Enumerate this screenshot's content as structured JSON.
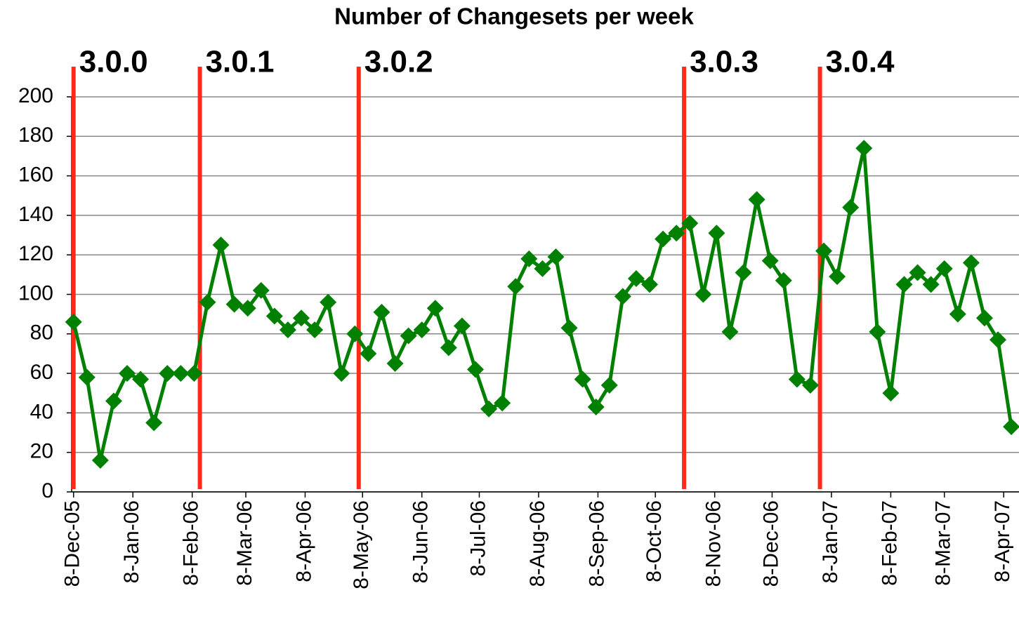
{
  "chart_data": {
    "type": "line",
    "title": "Number of Changesets per week",
    "x": [
      "2005-12-08",
      "2005-12-15",
      "2005-12-22",
      "2005-12-29",
      "2006-01-05",
      "2006-01-12",
      "2006-01-19",
      "2006-01-26",
      "2006-02-02",
      "2006-02-09",
      "2006-02-16",
      "2006-02-23",
      "2006-03-02",
      "2006-03-09",
      "2006-03-16",
      "2006-03-23",
      "2006-03-30",
      "2006-04-06",
      "2006-04-13",
      "2006-04-20",
      "2006-04-27",
      "2006-05-04",
      "2006-05-11",
      "2006-05-18",
      "2006-05-25",
      "2006-06-01",
      "2006-06-08",
      "2006-06-15",
      "2006-06-22",
      "2006-06-29",
      "2006-07-06",
      "2006-07-13",
      "2006-07-20",
      "2006-07-27",
      "2006-08-03",
      "2006-08-10",
      "2006-08-17",
      "2006-08-24",
      "2006-08-31",
      "2006-09-07",
      "2006-09-14",
      "2006-09-21",
      "2006-09-28",
      "2006-10-05",
      "2006-10-12",
      "2006-10-19",
      "2006-10-26",
      "2006-11-02",
      "2006-11-09",
      "2006-11-16",
      "2006-11-23",
      "2006-11-30",
      "2006-12-07",
      "2006-12-14",
      "2006-12-21",
      "2006-12-28",
      "2007-01-04",
      "2007-01-11",
      "2007-01-18",
      "2007-01-25",
      "2007-02-01",
      "2007-02-08",
      "2007-02-15",
      "2007-02-22",
      "2007-03-01",
      "2007-03-08",
      "2007-03-15",
      "2007-03-22",
      "2007-03-29",
      "2007-04-05",
      "2007-04-12"
    ],
    "series": [
      {
        "name": "Changesets",
        "color": "#008000",
        "values": [
          86,
          58,
          16,
          46,
          60,
          57,
          35,
          60,
          60,
          60,
          96,
          125,
          95,
          93,
          102,
          89,
          82,
          88,
          82,
          96,
          60,
          80,
          70,
          91,
          65,
          79,
          82,
          93,
          73,
          84,
          62,
          42,
          45,
          104,
          118,
          113,
          119,
          83,
          57,
          43,
          54,
          99,
          108,
          105,
          128,
          131,
          136,
          100,
          131,
          81,
          111,
          148,
          117,
          107,
          57,
          54,
          122,
          109,
          144,
          174,
          81,
          50,
          105,
          111,
          105,
          113,
          90,
          116,
          88,
          77,
          33
        ]
      }
    ],
    "releases": {
      "color": "#ff2a1a",
      "items": [
        {
          "x": "2005-12-08",
          "label": "3.0.0"
        },
        {
          "x": "2006-02-12",
          "label": "3.0.1"
        },
        {
          "x": "2006-05-06",
          "label": "3.0.2"
        },
        {
          "x": "2006-10-23",
          "label": "3.0.3"
        },
        {
          "x": "2007-01-02",
          "label": "3.0.4"
        }
      ]
    },
    "xlim": [
      "2005-12-07",
      "2007-04-16"
    ],
    "xticks": [
      {
        "value": "2005-12-08",
        "label": "8-Dec-05"
      },
      {
        "value": "2006-01-08",
        "label": "8-Jan-06"
      },
      {
        "value": "2006-02-08",
        "label": "8-Feb-06"
      },
      {
        "value": "2006-03-08",
        "label": "8-Mar-06"
      },
      {
        "value": "2006-04-08",
        "label": "8-Apr-06"
      },
      {
        "value": "2006-05-08",
        "label": "8-May-06"
      },
      {
        "value": "2006-06-08",
        "label": "8-Jun-06"
      },
      {
        "value": "2006-07-08",
        "label": "8-Jul-06"
      },
      {
        "value": "2006-08-08",
        "label": "8-Aug-06"
      },
      {
        "value": "2006-09-08",
        "label": "8-Sep-06"
      },
      {
        "value": "2006-10-08",
        "label": "8-Oct-06"
      },
      {
        "value": "2006-11-08",
        "label": "8-Nov-06"
      },
      {
        "value": "2006-12-08",
        "label": "8-Dec-06"
      },
      {
        "value": "2007-01-08",
        "label": "8-Jan-07"
      },
      {
        "value": "2007-02-08",
        "label": "8-Feb-07"
      },
      {
        "value": "2007-03-08",
        "label": "8-Mar-07"
      },
      {
        "value": "2007-04-08",
        "label": "8-Apr-07"
      }
    ],
    "ylim": [
      0,
      200
    ],
    "yticks": [
      0,
      20,
      40,
      60,
      80,
      100,
      120,
      140,
      160,
      180,
      200
    ],
    "grid": true
  }
}
